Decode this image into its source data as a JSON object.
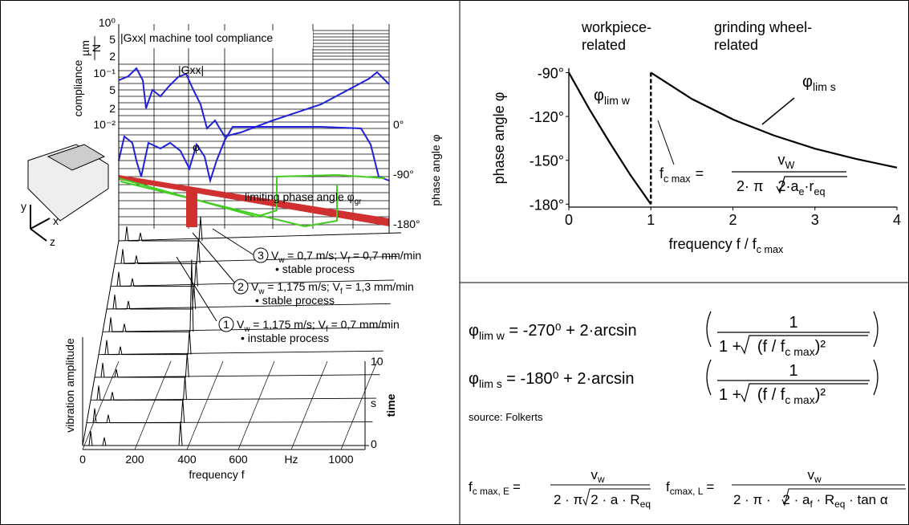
{
  "left_figure": {
    "compliance_title": "|Gxx|  machine tool compliance",
    "compliance_axis": "compliance",
    "unit_num": "µm",
    "unit_den": "N",
    "compliance_ticks": [
      "10⁰",
      "5",
      "2",
      "10⁻¹",
      "5",
      "2",
      "10⁻²"
    ],
    "gxx_label": "|Gxx|",
    "phi_label": "φ",
    "phase_axis": "phase angle φ",
    "phase_ticks": [
      "0°",
      "-90°",
      "-180°"
    ],
    "limiting": {
      "text": "limiting phase angle φ",
      "sub": "gr"
    },
    "cases": [
      {
        "num": "3",
        "parts": [
          "V",
          "w",
          " = 0,7 m/s; V",
          "f",
          " = 0,7 mm/min"
        ],
        "note": "• stable process"
      },
      {
        "num": "2",
        "parts": [
          "V",
          "w",
          " = 1,175 m/s; V",
          "f",
          " = 1,3 mm/min"
        ],
        "note": "• stable process"
      },
      {
        "num": "1",
        "parts": [
          "V",
          "w",
          " = 1,175 m/s; V",
          "f",
          " = 0,7 mm/min"
        ],
        "note": "• instable process"
      }
    ],
    "vib_axis": "vibration amplitude",
    "freq_ticks": [
      "0",
      "200",
      "400",
      "600",
      "Hz",
      "1000"
    ],
    "freq_axis": "frequency f",
    "time_ticks": [
      "10",
      "s",
      "0"
    ],
    "time_axis": "time",
    "coord_axes": [
      "y",
      "x",
      "z"
    ]
  },
  "chart_data": {
    "type": "line",
    "header_left": [
      "workpiece-",
      "related"
    ],
    "header_right": [
      "grinding wheel-",
      "related"
    ],
    "ylabel": "phase angle φ",
    "xlabel": {
      "text": "frequency f / f",
      "sub": "c max"
    },
    "xlim": [
      0,
      4
    ],
    "ylim": [
      -182,
      -87
    ],
    "xticks": [
      0,
      1,
      2,
      3,
      4
    ],
    "yticks": [
      {
        "value": -90,
        "label": "-90°"
      },
      {
        "value": -120,
        "label": "-120°"
      },
      {
        "value": -150,
        "label": "-150°"
      },
      {
        "value": -180,
        "label": "-180°"
      }
    ],
    "series": [
      {
        "label": {
          "symbol": "φ",
          "sub": "lim w"
        },
        "color": "#000000",
        "x": [
          0,
          0.25,
          0.5,
          0.75,
          1
        ],
        "values": [
          -90,
          -115,
          -138,
          -160,
          -180
        ]
      },
      {
        "label": {
          "symbol": "φ",
          "sub": "lim s"
        },
        "color": "#000000",
        "x": [
          1,
          1.5,
          2,
          2.5,
          3,
          3.5,
          4
        ],
        "values": [
          -90,
          -108,
          -122,
          -133,
          -142,
          -149,
          -155
        ]
      },
      {
        "color": "#000000",
        "dash": true,
        "x": [
          1,
          1
        ],
        "values": [
          -90,
          -180
        ]
      }
    ],
    "annotation": {
      "f": "f",
      "f_sub": "c max",
      "eq": "=",
      "num": "v",
      "num_sub": "W",
      "den_a": "2· π",
      "den_b": "2·a",
      "den_b_sub": "e",
      "den_c": "·r",
      "den_c_sub": "eq"
    }
  },
  "formulas": {
    "phi_w": {
      "lhs": "φ",
      "sub": "lim w",
      "rhs": " = -270⁰ + 2·arcsin",
      "num": "1",
      "den": "1 + ",
      "den_in": "(f / f",
      "den_sub": "c max",
      "den_end": ")²"
    },
    "phi_s": {
      "lhs": "φ",
      "sub": "lim s",
      "rhs": " = -180⁰ + 2·arcsin",
      "num": "1",
      "den": "1 + ",
      "den_in": "(f / f",
      "den_sub": "c max",
      "den_end": ")²"
    },
    "source": "source:  Folkerts",
    "fE": {
      "lhs": "f",
      "sub": "c max, E",
      "eq": "=",
      "num": "v",
      "num_sub": "w",
      "den": "2 · π",
      "den_in": "2 · a · R",
      "den_sub": "eq"
    },
    "fL": {
      "lhs": "f",
      "sub": "cmax, L",
      "eq": "=",
      "num": "v",
      "num_sub": "w",
      "den": "2 · π · ",
      "den_in": "2 · a",
      "den_sub1": "f",
      "den_mid": " · R",
      "den_sub2": "eq",
      "den_end": " · tan α"
    }
  }
}
